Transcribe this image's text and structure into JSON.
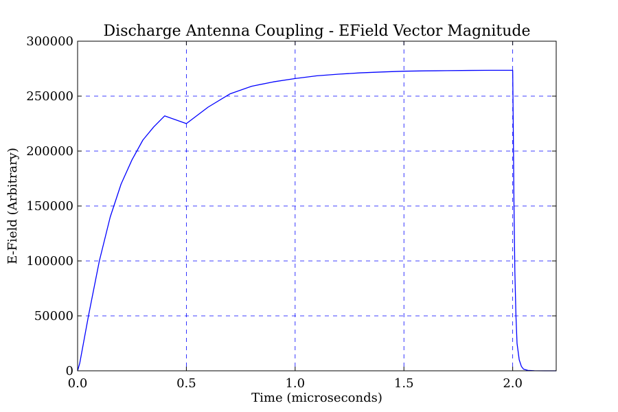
{
  "chart_data": {
    "type": "line",
    "title": "Discharge Antenna Coupling - EField Vector Magnitude",
    "xlabel": "Time (microseconds)",
    "ylabel": "E-Field (Arbitrary)",
    "xlim": [
      0.0,
      2.2
    ],
    "ylim": [
      0,
      300000
    ],
    "x_ticks": [
      0.0,
      0.5,
      1.0,
      1.5,
      2.0
    ],
    "x_tick_labels": [
      "0.0",
      "0.5",
      "1.0",
      "1.5",
      "2.0"
    ],
    "y_ticks": [
      0,
      50000,
      100000,
      150000,
      200000,
      250000,
      300000
    ],
    "y_tick_labels": [
      "0",
      "50000",
      "100000",
      "150000",
      "200000",
      "250000",
      "300000"
    ],
    "grid": true,
    "legend": "none",
    "series": [
      {
        "color": "#0000ff",
        "x": [
          0.0,
          0.01,
          0.05,
          0.1,
          0.15,
          0.2,
          0.25,
          0.3,
          0.35,
          0.4,
          0.5,
          0.6,
          0.7,
          0.8,
          0.9,
          1.0,
          1.1,
          1.2,
          1.3,
          1.4,
          1.5,
          1.6,
          1.7,
          1.8,
          1.9,
          2.0,
          2.0,
          2.003,
          2.006,
          2.01,
          2.015,
          2.02,
          2.03,
          2.04,
          2.05,
          2.07,
          2.1,
          2.15,
          2.2
        ],
        "y": [
          0,
          7000,
          50000,
          100000,
          140000,
          170000,
          192000,
          210000,
          222000,
          232000,
          225000,
          240000,
          252000,
          259000,
          263000,
          266000,
          268500,
          270000,
          271200,
          272000,
          272700,
          273000,
          273200,
          273400,
          273500,
          273500,
          273500,
          215000,
          150000,
          90000,
          50000,
          25000,
          10000,
          4000,
          1500,
          400,
          100,
          0,
          0
        ]
      }
    ],
    "grid_color": "#0000ff",
    "axes_color": "#000000"
  }
}
